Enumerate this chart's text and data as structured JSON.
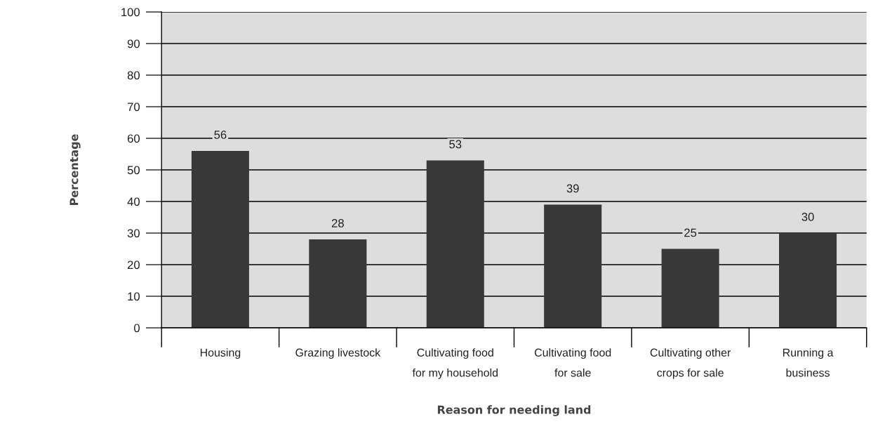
{
  "chart_data": {
    "type": "bar",
    "categories": [
      "Housing",
      "Grazing livestock",
      "Cultivating food\nfor my household",
      "Cultivating food\nfor sale",
      "Cultivating other\ncrops for sale",
      "Running a\nbusiness"
    ],
    "values": [
      56,
      28,
      53,
      39,
      25,
      30
    ],
    "color": "#383838",
    "xlabel": "Reason for needing land",
    "ylabel": "Percentage",
    "ylim": [
      0,
      100
    ],
    "yticks": [
      0,
      10,
      20,
      30,
      40,
      50,
      60,
      70,
      80,
      90,
      100
    ],
    "grid": "y",
    "data_labels": true
  }
}
